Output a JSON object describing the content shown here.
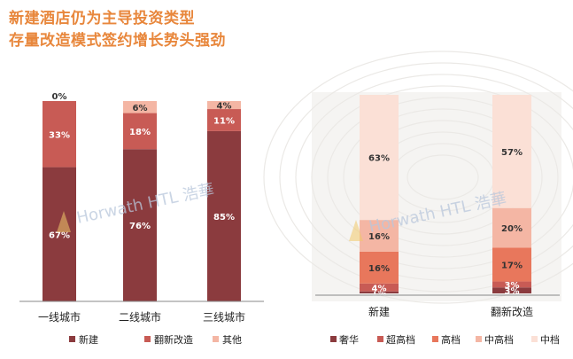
{
  "header": {
    "title_line1": "新建酒店仍为主导投资类型",
    "title_line2": "存量改造模式签约增长势头强劲"
  },
  "watermark": {
    "text": "Horwath HTL 浩華"
  },
  "chart_data": [
    {
      "type": "bar",
      "stacked": true,
      "categories": [
        "一线城市",
        "二线城市",
        "三线城市"
      ],
      "series": [
        {
          "name": "新建",
          "values": [
            67,
            76,
            85
          ],
          "labels": [
            "67%",
            "76%",
            "85%"
          ],
          "color": "#8b3b3e",
          "label_color": "#ffffff"
        },
        {
          "name": "翻新改造",
          "values": [
            33,
            18,
            11
          ],
          "labels": [
            "33%",
            "18%",
            "11%"
          ],
          "color": "#c85b55",
          "label_color": "#ffffff"
        },
        {
          "name": "其他",
          "values": [
            0,
            6,
            4
          ],
          "labels": [
            "0%",
            "6%",
            "4%"
          ],
          "color": "#f4b6a4",
          "label_color": "#333333"
        }
      ],
      "ylim": [
        0,
        100
      ]
    },
    {
      "type": "bar",
      "stacked": true,
      "categories": [
        "新建",
        "翻新改造"
      ],
      "series": [
        {
          "name": "奢华",
          "values": [
            1,
            3
          ],
          "labels": [
            "1%",
            "3%"
          ],
          "color": "#8b3b3e",
          "label_color": "#ffffff"
        },
        {
          "name": "超高档",
          "values": [
            4,
            3
          ],
          "labels": [
            "4%",
            "3%"
          ],
          "color": "#c85b55",
          "label_color": "#ffffff"
        },
        {
          "name": "高档",
          "values": [
            16,
            17
          ],
          "labels": [
            "16%",
            "17%"
          ],
          "color": "#e8775c",
          "label_color": "#333333"
        },
        {
          "name": "中高档",
          "values": [
            16,
            20
          ],
          "labels": [
            "16%",
            "20%"
          ],
          "color": "#f4b6a4",
          "label_color": "#333333"
        },
        {
          "name": "中档",
          "values": [
            63,
            57
          ],
          "labels": [
            "63%",
            "57%"
          ],
          "color": "#fbe0d6",
          "label_color": "#333333"
        }
      ],
      "ylim": [
        0,
        100
      ]
    }
  ]
}
